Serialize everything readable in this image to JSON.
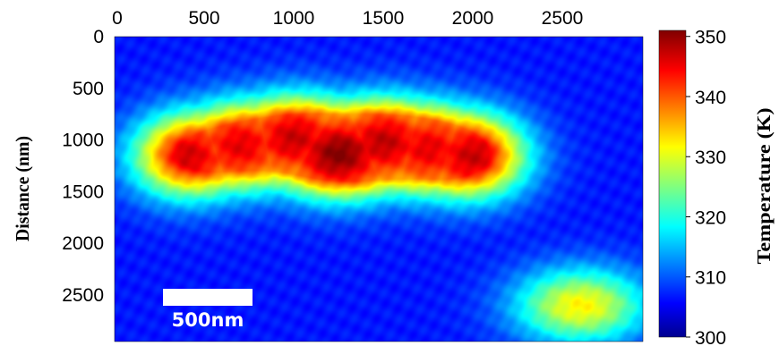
{
  "chart_data": {
    "type": "heatmap",
    "title": "",
    "x": {
      "ticks": [
        0,
        500,
        1000,
        1500,
        2000,
        2500
      ],
      "range": [
        0,
        2950
      ],
      "label": "",
      "position": "top"
    },
    "y": {
      "ticks": [
        0,
        500,
        1000,
        1500,
        2000,
        2500
      ],
      "range": [
        0,
        2950
      ],
      "label": "Distance (nm)",
      "reversed": true
    },
    "colorbar": {
      "ticks": [
        300,
        310,
        320,
        330,
        340,
        350
      ],
      "range": [
        300,
        351
      ],
      "label": "Temperature (K)",
      "colormap": "jet",
      "position": "right"
    },
    "background_value": 302,
    "hotspots": [
      {
        "x": 400,
        "y": 1150,
        "peak": 342
      },
      {
        "x": 700,
        "y": 1050,
        "peak": 340
      },
      {
        "x": 1000,
        "y": 980,
        "peak": 343
      },
      {
        "x": 1250,
        "y": 1130,
        "peak": 350
      },
      {
        "x": 1500,
        "y": 1020,
        "peak": 344
      },
      {
        "x": 1750,
        "y": 1080,
        "peak": 340
      },
      {
        "x": 2000,
        "y": 1150,
        "peak": 343
      },
      {
        "x": 2600,
        "y": 2600,
        "peak": 330
      }
    ],
    "scale_bar": {
      "label": "500nm",
      "length_nm": 500
    },
    "grid": false
  }
}
